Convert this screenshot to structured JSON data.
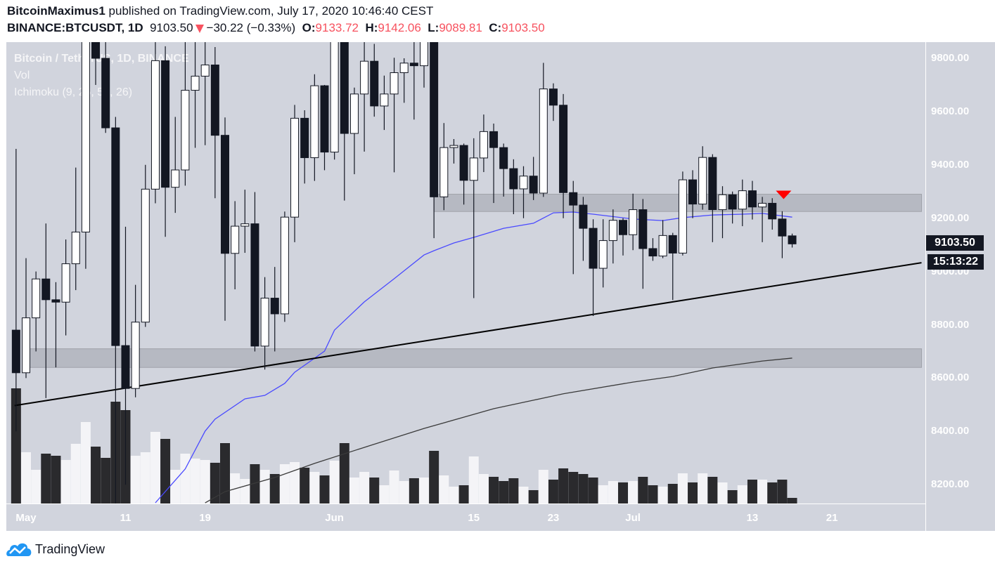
{
  "header": {
    "author": "BitcoinMaximus1",
    "published": "published on TradingView.com, July 17, 2020 10:46:40 CEST",
    "symbol": "BINANCE:BTCUSDT, 1D",
    "last": "9103.50",
    "change": "−30.22 (−0.33%)",
    "o_label": "O:",
    "o": "9133.72",
    "h_label": "H:",
    "h": "9142.06",
    "l_label": "L:",
    "l": "9089.81",
    "c_label": "C:",
    "c": "9103.50"
  },
  "legend": {
    "title": "Bitcoin / TetherUS, 1D, BINANCE",
    "vol": "Vol",
    "ichimoku": "Ichimoku (9, 26, 52, 26)"
  },
  "price_tag": "9103.50",
  "countdown": "15:13:22",
  "logo_text": "TradingView",
  "colors": {
    "up": "#ffffff",
    "down": "#131722",
    "vol_up": "#f4f4f7",
    "vol_down": "#2a2a2d",
    "ma_fast": "#4a4aff",
    "ma_slow": "#3a3a3a",
    "trend": "#000000",
    "zone": "#9598a1",
    "signal": "#ff0000",
    "accent": "#2196f3",
    "neg": "#f7525f"
  },
  "chart_data": {
    "type": "candlestick",
    "title": "Bitcoin / TetherUS, 1D, BINANCE",
    "ylim": [
      8130,
      9860
    ],
    "y_ticks": [
      9800,
      9600,
      9400,
      9200,
      9000,
      8800,
      8600,
      8400,
      8200
    ],
    "x_ticks": [
      {
        "date": "2020-05-01",
        "label": "May"
      },
      {
        "date": "2020-05-11",
        "label": "11"
      },
      {
        "date": "2020-05-19",
        "label": "19"
      },
      {
        "date": "2020-06-01",
        "label": "Jun"
      },
      {
        "date": "2020-06-15",
        "label": "15"
      },
      {
        "date": "2020-06-23",
        "label": "23"
      },
      {
        "date": "2020-07-01",
        "label": "Jul"
      },
      {
        "date": "2020-07-13",
        "label": "13"
      },
      {
        "date": "2020-07-21",
        "label": "21"
      }
    ],
    "x_range": [
      "2020-04-29",
      "2020-07-30"
    ],
    "candles_columns": [
      "date",
      "open",
      "high",
      "low",
      "close"
    ],
    "candles": [
      [
        "2020-04-30",
        8780,
        9460,
        8400,
        8620
      ],
      [
        "2020-05-01",
        8620,
        9050,
        8600,
        8826
      ],
      [
        "2020-05-02",
        8826,
        9000,
        8700,
        8972
      ],
      [
        "2020-05-03",
        8972,
        9180,
        8525,
        8894
      ],
      [
        "2020-05-04",
        8894,
        8960,
        8640,
        8885
      ],
      [
        "2020-05-05",
        8885,
        9120,
        8760,
        9029
      ],
      [
        "2020-05-06",
        9029,
        9390,
        8930,
        9148
      ],
      [
        "2020-05-07",
        9148,
        10070,
        9010,
        9986
      ],
      [
        "2020-05-08",
        9986,
        10000,
        9700,
        9800
      ],
      [
        "2020-05-09",
        9800,
        9920,
        9520,
        9539
      ],
      [
        "2020-05-10",
        9539,
        9580,
        8106,
        8722
      ],
      [
        "2020-05-11",
        8722,
        9168,
        8200,
        8561
      ],
      [
        "2020-05-12",
        8561,
        8950,
        8528,
        8810
      ],
      [
        "2020-05-13",
        8810,
        9400,
        8792,
        9309
      ],
      [
        "2020-05-14",
        9309,
        9930,
        9256,
        9791
      ],
      [
        "2020-05-15",
        9791,
        9845,
        9130,
        9316
      ],
      [
        "2020-05-16",
        9316,
        9580,
        9220,
        9381
      ],
      [
        "2020-05-17",
        9381,
        9888,
        9322,
        9680
      ],
      [
        "2020-05-18",
        9680,
        9950,
        9464,
        9733
      ],
      [
        "2020-05-19",
        9733,
        9900,
        9474,
        9775
      ],
      [
        "2020-05-20",
        9775,
        9842,
        9275,
        9511
      ],
      [
        "2020-05-21",
        9511,
        9578,
        8815,
        9068
      ],
      [
        "2020-05-22",
        9068,
        9264,
        8933,
        9170
      ],
      [
        "2020-05-23",
        9170,
        9307,
        9070,
        9179
      ],
      [
        "2020-05-24",
        9179,
        9298,
        8700,
        8720
      ],
      [
        "2020-05-25",
        8720,
        8979,
        8632,
        8900
      ],
      [
        "2020-05-26",
        8900,
        9017,
        8700,
        8841
      ],
      [
        "2020-05-27",
        8841,
        9225,
        8811,
        9204
      ],
      [
        "2020-05-28",
        9204,
        9625,
        9110,
        9575
      ],
      [
        "2020-05-29",
        9575,
        9605,
        9330,
        9427
      ],
      [
        "2020-05-30",
        9427,
        9740,
        9340,
        9697
      ],
      [
        "2020-05-31",
        9697,
        9700,
        9380,
        9448
      ],
      [
        "2020-06-01",
        9448,
        10380,
        9420,
        10200
      ],
      [
        "2020-06-02",
        10200,
        10228,
        9266,
        9518
      ],
      [
        "2020-06-03",
        9518,
        9690,
        9365,
        9666
      ],
      [
        "2020-06-04",
        9666,
        9881,
        9450,
        9789
      ],
      [
        "2020-06-05",
        9789,
        9854,
        9581,
        9621
      ],
      [
        "2020-06-06",
        9621,
        9735,
        9531,
        9666
      ],
      [
        "2020-06-07",
        9666,
        9802,
        9372,
        9746
      ],
      [
        "2020-06-08",
        9746,
        9800,
        9633,
        9782
      ],
      [
        "2020-06-09",
        9782,
        9877,
        9570,
        9772
      ],
      [
        "2020-06-10",
        9772,
        9992,
        9690,
        9885
      ],
      [
        "2020-06-11",
        9885,
        9935,
        9125,
        9280
      ],
      [
        "2020-06-12",
        9280,
        9557,
        9230,
        9465
      ],
      [
        "2020-06-13",
        9465,
        9497,
        9405,
        9473
      ],
      [
        "2020-06-14",
        9473,
        9480,
        9251,
        9342
      ],
      [
        "2020-06-15",
        9342,
        9500,
        8900,
        9426
      ],
      [
        "2020-06-16",
        9426,
        9589,
        9373,
        9525
      ],
      [
        "2020-06-17",
        9525,
        9555,
        9257,
        9465
      ],
      [
        "2020-06-18",
        9465,
        9480,
        9281,
        9386
      ],
      [
        "2020-06-19",
        9386,
        9421,
        9215,
        9310
      ],
      [
        "2020-06-20",
        9310,
        9395,
        9200,
        9358
      ],
      [
        "2020-06-21",
        9358,
        9430,
        9268,
        9294
      ],
      [
        "2020-06-22",
        9294,
        9783,
        9280,
        9685
      ],
      [
        "2020-06-23",
        9685,
        9706,
        9565,
        9624
      ],
      [
        "2020-06-24",
        9624,
        9666,
        9200,
        9296
      ],
      [
        "2020-06-25",
        9296,
        9340,
        8990,
        9249
      ],
      [
        "2020-06-26",
        9249,
        9280,
        9040,
        9162
      ],
      [
        "2020-06-27",
        9162,
        9196,
        8833,
        9012
      ],
      [
        "2020-06-28",
        9012,
        9196,
        8940,
        9116
      ],
      [
        "2020-06-29",
        9116,
        9233,
        9030,
        9192
      ],
      [
        "2020-06-30",
        9192,
        9200,
        9060,
        9138
      ],
      [
        "2020-07-01",
        9138,
        9292,
        9080,
        9232
      ],
      [
        "2020-07-02",
        9232,
        9272,
        8935,
        9086
      ],
      [
        "2020-07-03",
        9086,
        9125,
        9040,
        9058
      ],
      [
        "2020-07-04",
        9058,
        9193,
        9050,
        9135
      ],
      [
        "2020-07-05",
        9135,
        9145,
        8893,
        9069
      ],
      [
        "2020-07-06",
        9069,
        9375,
        9060,
        9344
      ],
      [
        "2020-07-07",
        9344,
        9380,
        9200,
        9253
      ],
      [
        "2020-07-08",
        9253,
        9470,
        9232,
        9428
      ],
      [
        "2020-07-09",
        9428,
        9440,
        9110,
        9232
      ],
      [
        "2020-07-10",
        9232,
        9320,
        9125,
        9288
      ],
      [
        "2020-07-11",
        9288,
        9300,
        9180,
        9234
      ],
      [
        "2020-07-12",
        9234,
        9345,
        9170,
        9303
      ],
      [
        "2020-07-13",
        9303,
        9340,
        9195,
        9242
      ],
      [
        "2020-07-14",
        9242,
        9280,
        9110,
        9256
      ],
      [
        "2020-07-15",
        9256,
        9275,
        9157,
        9197
      ],
      [
        "2020-07-16",
        9197,
        9226,
        9050,
        9133
      ],
      [
        "2020-07-17",
        9133.72,
        9142.06,
        9089.81,
        9103.5
      ]
    ],
    "volume_relative": [
      164,
      73,
      48,
      71,
      68,
      62,
      85,
      116,
      81,
      65,
      145,
      133,
      68,
      73,
      102,
      92,
      48,
      71,
      64,
      62,
      58,
      86,
      43,
      35,
      56,
      48,
      42,
      56,
      59,
      51,
      45,
      40,
      61,
      86,
      37,
      45,
      37,
      26,
      47,
      32,
      36,
      37,
      75,
      40,
      24,
      26,
      67,
      42,
      38,
      32,
      36,
      24,
      19,
      48,
      34,
      50,
      45,
      42,
      37,
      26,
      32,
      30,
      32,
      38,
      26,
      24,
      28,
      43,
      30,
      43,
      38,
      30,
      19,
      26,
      34,
      34,
      30,
      34,
      8
    ],
    "lines": [
      {
        "points": [
          [
            "2020-05-14",
            8132
          ],
          [
            "2020-05-17",
            8259
          ],
          [
            "2020-05-19",
            8401
          ],
          [
            "2020-05-20",
            8446
          ],
          [
            "2020-05-23",
            8522
          ],
          [
            "2020-05-25",
            8535
          ],
          [
            "2020-05-27",
            8580
          ],
          [
            "2020-05-28",
            8622
          ],
          [
            "2020-05-31",
            8701
          ],
          [
            "2020-06-01",
            8780
          ],
          [
            "2020-06-04",
            8886
          ],
          [
            "2020-06-07",
            8973
          ],
          [
            "2020-06-10",
            9062
          ],
          [
            "2020-06-11",
            9078
          ],
          [
            "2020-06-13",
            9107
          ],
          [
            "2020-06-15",
            9128
          ],
          [
            "2020-06-18",
            9162
          ],
          [
            "2020-06-21",
            9181
          ],
          [
            "2020-06-23",
            9220
          ],
          [
            "2020-06-25",
            9223
          ],
          [
            "2020-06-27",
            9215
          ],
          [
            "2020-07-01",
            9197
          ],
          [
            "2020-07-04",
            9191
          ],
          [
            "2020-07-06",
            9202
          ],
          [
            "2020-07-09",
            9212
          ],
          [
            "2020-07-12",
            9215
          ],
          [
            "2020-07-14",
            9218
          ],
          [
            "2020-07-17",
            9204
          ]
        ],
        "color": "#4a4aff"
      },
      {
        "points": [
          [
            "2020-05-19",
            8132
          ],
          [
            "2020-05-21",
            8174
          ],
          [
            "2020-05-26",
            8227
          ],
          [
            "2020-05-30",
            8280
          ],
          [
            "2020-06-04",
            8340
          ],
          [
            "2020-06-10",
            8411
          ],
          [
            "2020-06-17",
            8485
          ],
          [
            "2020-06-21",
            8517
          ],
          [
            "2020-06-24",
            8541
          ],
          [
            "2020-07-01",
            8585
          ],
          [
            "2020-07-05",
            8606
          ],
          [
            "2020-07-09",
            8638
          ],
          [
            "2020-07-14",
            8664
          ],
          [
            "2020-07-17",
            8675
          ]
        ],
        "color": "#3a3a3a"
      }
    ],
    "trendline": [
      [
        "2020-04-30",
        8497
      ],
      [
        "2020-07-30",
        9033
      ]
    ],
    "zones": [
      {
        "from": "2020-05-01",
        "to": "2020-07-30",
        "low": 8640,
        "high": 8710
      },
      {
        "from": "2020-06-11",
        "to": "2020-07-30",
        "low": 9225,
        "high": 9290
      }
    ],
    "signal": {
      "type": "sell-arrow",
      "date": "2020-07-16",
      "price": 9285
    }
  }
}
